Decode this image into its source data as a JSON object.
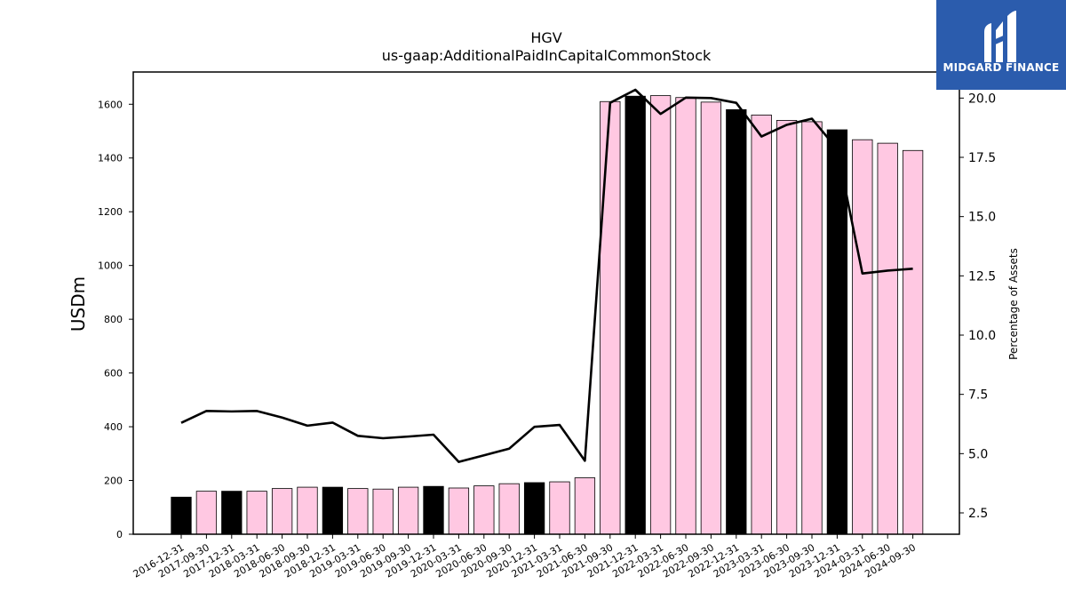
{
  "chart_data": {
    "type": "bar",
    "title": "HGV",
    "subtitle": "us-gaap:AdditionalPaidInCapitalCommonStock",
    "ylabel": "USDm",
    "ylabel_right": "Percentage of Assets",
    "ylim": [
      0,
      1720
    ],
    "ylim_right": [
      1.6,
      21.1
    ],
    "yticks": [
      "0",
      "200",
      "400",
      "600",
      "800",
      "1000",
      "1200",
      "1400",
      "1600"
    ],
    "yticks_right": [
      "2.5",
      "5.0",
      "7.5",
      "10.0",
      "12.5",
      "15.0",
      "17.5",
      "20.0"
    ],
    "grid": false,
    "colors": {
      "annual": "#000000",
      "quarterly": "#ffc8e2",
      "line": "#000000",
      "edge": "#000000"
    },
    "categories": [
      "2016-12-31",
      "2017-09-30",
      "2017-12-31",
      "2018-03-31",
      "2018-06-30",
      "2018-09-30",
      "2018-12-31",
      "2019-03-31",
      "2019-06-30",
      "2019-09-30",
      "2019-12-31",
      "2020-03-31",
      "2020-06-30",
      "2020-09-30",
      "2020-12-31",
      "2021-03-31",
      "2021-06-30",
      "2021-09-30",
      "2021-12-31",
      "2022-03-31",
      "2022-06-30",
      "2022-09-30",
      "2022-12-31",
      "2023-03-31",
      "2023-06-30",
      "2023-09-30",
      "2023-12-31",
      "2024-03-31",
      "2024-06-30",
      "2024-09-30"
    ],
    "values": [
      138,
      160,
      160,
      160,
      170,
      175,
      175,
      170,
      168,
      175,
      178,
      172,
      180,
      188,
      192,
      195,
      210,
      1610,
      1630,
      1632,
      1625,
      1608,
      1580,
      1560,
      1540,
      1535,
      1505,
      1468,
      1455,
      1428
    ],
    "annual": [
      true,
      false,
      true,
      false,
      false,
      false,
      true,
      false,
      false,
      false,
      true,
      false,
      false,
      false,
      true,
      false,
      false,
      false,
      true,
      false,
      false,
      false,
      true,
      false,
      false,
      false,
      true,
      false,
      false,
      false
    ],
    "series": [
      {
        "values": [
          6.3,
          6.8,
          6.78,
          6.8,
          6.52,
          6.18,
          6.31,
          5.75,
          5.65,
          5.72,
          5.8,
          4.65,
          4.93,
          5.21,
          6.13,
          6.21,
          4.7,
          19.8,
          20.35,
          19.33,
          20.02,
          20.0,
          19.8,
          18.38,
          18.87,
          19.13,
          17.85,
          12.6,
          12.72,
          12.8
        ]
      }
    ]
  },
  "logo": {
    "text": "MIDGARD FINANCE"
  }
}
